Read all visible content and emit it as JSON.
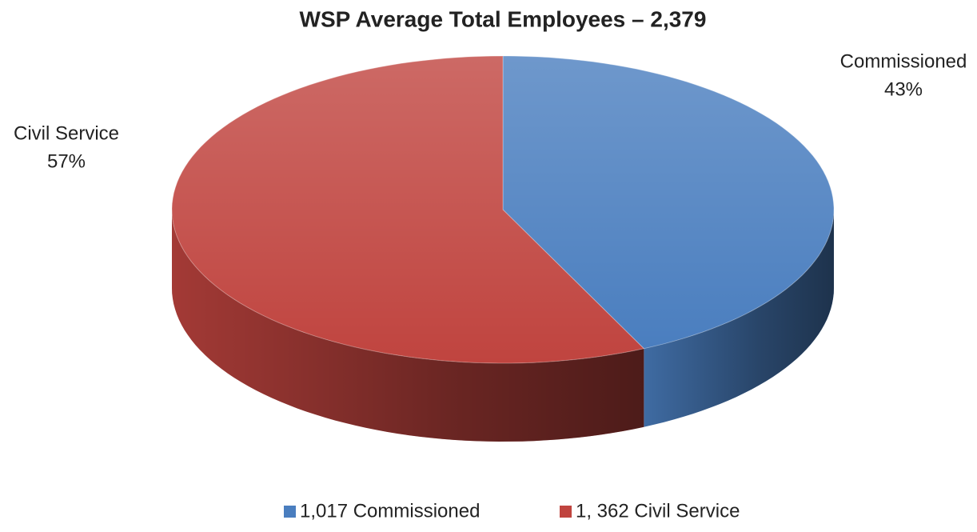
{
  "chart_data": {
    "type": "pie",
    "title": "WSP Average Total Employees – 2,379",
    "categories": [
      "Commissioned",
      "Civil Service"
    ],
    "values": [
      43,
      57
    ],
    "value_labels": [
      "43%",
      "57%"
    ],
    "colors": [
      "#4a7ebf",
      "#c0443f"
    ],
    "legend": [
      "1,017 Commissioned",
      "1, 362 Civil Service"
    ],
    "legend_position": "bottom"
  }
}
